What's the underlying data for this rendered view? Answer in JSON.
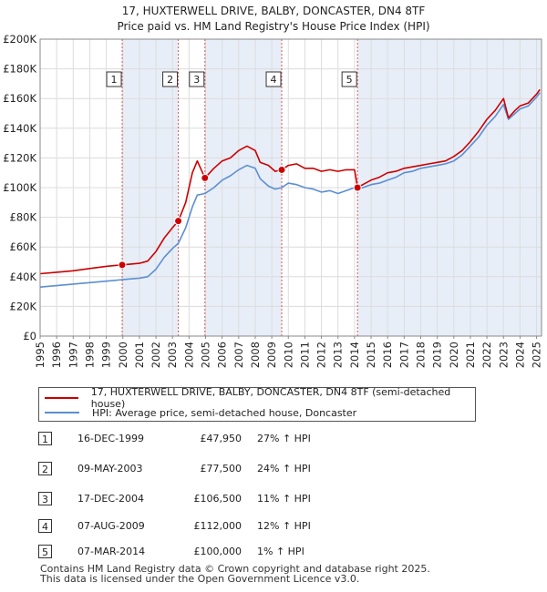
{
  "title_line1": "17, HUXTERWELL DRIVE, BALBY, DONCASTER, DN4 8TF",
  "title_line2": "Price paid vs. HM Land Registry's House Price Index (HPI)",
  "legend": {
    "property": "17, HUXTERWELL DRIVE, BALBY, DONCASTER, DN4 8TF (semi-detached house)",
    "hpi": "HPI: Average price, semi-detached house, Doncaster"
  },
  "colors": {
    "property": "#cc0000",
    "hpi": "#5b8fd1",
    "shade": "#e8eef8",
    "vline": "#dd5555"
  },
  "events": [
    {
      "n": "1",
      "date": "16-DEC-1999",
      "price": "£47,950",
      "hpi": "27% ↑ HPI",
      "year": 1999.96,
      "value": 47950
    },
    {
      "n": "2",
      "date": "09-MAY-2003",
      "price": "£77,500",
      "hpi": "24% ↑ HPI",
      "year": 2003.35,
      "value": 77500
    },
    {
      "n": "3",
      "date": "17-DEC-2004",
      "price": "£106,500",
      "hpi": "11% ↑ HPI",
      "year": 2004.96,
      "value": 106500
    },
    {
      "n": "4",
      "date": "07-AUG-2009",
      "price": "£112,000",
      "hpi": "12% ↑ HPI",
      "year": 2009.6,
      "value": 112000
    },
    {
      "n": "5",
      "date": "07-MAR-2014",
      "price": "£100,000",
      "hpi": "1% ↑ HPI",
      "year": 2014.18,
      "value": 100000
    }
  ],
  "footer_line1": "Contains HM Land Registry data © Crown copyright and database right 2025.",
  "footer_line2": "This data is licensed under the Open Government Licence v3.0.",
  "chart_data": {
    "type": "line",
    "title": "17, HUXTERWELL DRIVE, BALBY, DONCASTER, DN4 8TF — Price paid vs. HM Land Registry's House Price Index (HPI)",
    "xlabel": "",
    "ylabel": "",
    "xlim": [
      1995,
      2025.3
    ],
    "ylim": [
      0,
      200000
    ],
    "grid": true,
    "legend_position": "below",
    "x_ticks": [
      "1995",
      "1996",
      "1997",
      "1998",
      "1999",
      "2000",
      "2001",
      "2002",
      "2003",
      "2004",
      "2005",
      "2006",
      "2007",
      "2008",
      "2009",
      "2010",
      "2011",
      "2012",
      "2013",
      "2014",
      "2015",
      "2016",
      "2017",
      "2018",
      "2019",
      "2020",
      "2021",
      "2022",
      "2023",
      "2024",
      "2025"
    ],
    "y_ticks": [
      "£0",
      "£20K",
      "£40K",
      "£60K",
      "£80K",
      "£100K",
      "£120K",
      "£140K",
      "£160K",
      "£180K",
      "£200K"
    ],
    "y_tick_values": [
      0,
      20000,
      40000,
      60000,
      80000,
      100000,
      120000,
      140000,
      160000,
      180000,
      200000
    ],
    "series": [
      {
        "name": "17, HUXTERWELL DRIVE, BALBY, DONCASTER, DN4 8TF (semi-detached house)",
        "x": [
          1995,
          1996,
          1997,
          1998,
          1999,
          1999.96,
          2000.5,
          2001,
          2001.5,
          2002,
          2002.5,
          2003,
          2003.35,
          2003.8,
          2004.2,
          2004.5,
          2004.96,
          2005.5,
          2006,
          2006.5,
          2007,
          2007.5,
          2008,
          2008.3,
          2008.8,
          2009.2,
          2009.6,
          2010,
          2010.5,
          2011,
          2011.5,
          2012,
          2012.5,
          2013,
          2013.5,
          2014,
          2014.18,
          2014.5,
          2015,
          2015.5,
          2016,
          2016.5,
          2017,
          2017.5,
          2018,
          2018.5,
          2019,
          2019.5,
          2020,
          2020.5,
          2021,
          2021.5,
          2022,
          2022.5,
          2023,
          2023.3,
          2023.7,
          2024,
          2024.5,
          2025,
          2025.2
        ],
        "values": [
          42000,
          43000,
          44000,
          45500,
          47000,
          47950,
          48500,
          49000,
          50500,
          57000,
          66000,
          73000,
          77500,
          90000,
          110000,
          118000,
          106500,
          113000,
          118000,
          120000,
          125000,
          128000,
          125000,
          117000,
          115000,
          111000,
          112000,
          115000,
          116000,
          113000,
          113000,
          111000,
          112000,
          111000,
          112000,
          112000,
          100000,
          102000,
          105000,
          107000,
          110000,
          111000,
          113000,
          114000,
          115000,
          116000,
          117000,
          118000,
          121000,
          125000,
          131000,
          138000,
          146000,
          152000,
          160000,
          147000,
          152000,
          155000,
          157000,
          163000,
          166000
        ]
      },
      {
        "name": "HPI: Average price, semi-detached house, Doncaster",
        "x": [
          1995,
          1996,
          1997,
          1998,
          1999,
          1999.96,
          2000.5,
          2001,
          2001.5,
          2002,
          2002.5,
          2003,
          2003.35,
          2003.8,
          2004.2,
          2004.5,
          2004.96,
          2005.5,
          2006,
          2006.5,
          2007,
          2007.5,
          2008,
          2008.3,
          2008.8,
          2009.2,
          2009.6,
          2010,
          2010.5,
          2011,
          2011.5,
          2012,
          2012.5,
          2013,
          2013.5,
          2014,
          2014.18,
          2014.5,
          2015,
          2015.5,
          2016,
          2016.5,
          2017,
          2017.5,
          2018,
          2018.5,
          2019,
          2019.5,
          2020,
          2020.5,
          2021,
          2021.5,
          2022,
          2022.5,
          2023,
          2023.3,
          2023.7,
          2024,
          2024.5,
          2025,
          2025.2
        ],
        "values": [
          33000,
          34000,
          35000,
          36000,
          37000,
          38000,
          38500,
          39000,
          40000,
          45000,
          53000,
          59000,
          62500,
          73000,
          87000,
          95000,
          96000,
          100000,
          105000,
          108000,
          112000,
          115000,
          113000,
          106000,
          101000,
          99000,
          100000,
          103000,
          102000,
          100000,
          99000,
          97000,
          98000,
          96000,
          98000,
          100000,
          99000,
          100000,
          102000,
          103000,
          105000,
          107000,
          110000,
          111000,
          113000,
          114000,
          115000,
          116000,
          118000,
          122000,
          128000,
          134000,
          142000,
          148000,
          156000,
          146000,
          150000,
          153000,
          155000,
          161000,
          164000
        ]
      }
    ]
  }
}
